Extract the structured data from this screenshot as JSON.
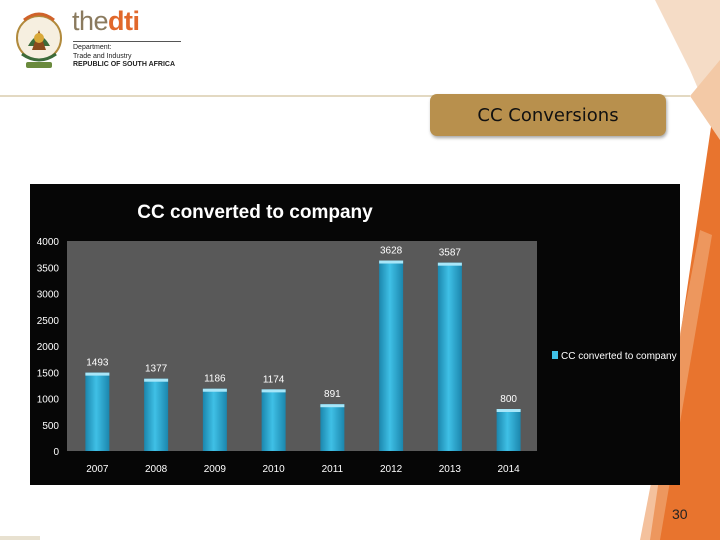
{
  "header": {
    "brand_the": "the",
    "brand_dti": "dti",
    "dept_line1": "Department:",
    "dept_line2": "Trade and Industry",
    "dept_line3": "REPUBLIC OF SOUTH AFRICA"
  },
  "slide_title": "CC Conversions",
  "page_number": "30",
  "colors": {
    "accent_orange": "#e1682b",
    "title_box": "#b8904d",
    "bar": "#29a7d3",
    "plot_area": "#595959",
    "chart_bg": "#060606"
  },
  "chart_data": {
    "type": "bar",
    "title": "CC converted  to company",
    "categories": [
      "2007",
      "2008",
      "2009",
      "2010",
      "2011",
      "2012",
      "2013",
      "2014"
    ],
    "series": [
      {
        "name": "CC converted  to company",
        "values": [
          1493,
          1377,
          1186,
          1174,
          891,
          3628,
          3587,
          800
        ]
      }
    ],
    "ylim": [
      0,
      4000
    ],
    "yticks": [
      0,
      500,
      1000,
      1500,
      2000,
      2500,
      3000,
      3500,
      4000
    ],
    "data_labels": true,
    "grid": false,
    "legend": "right"
  }
}
